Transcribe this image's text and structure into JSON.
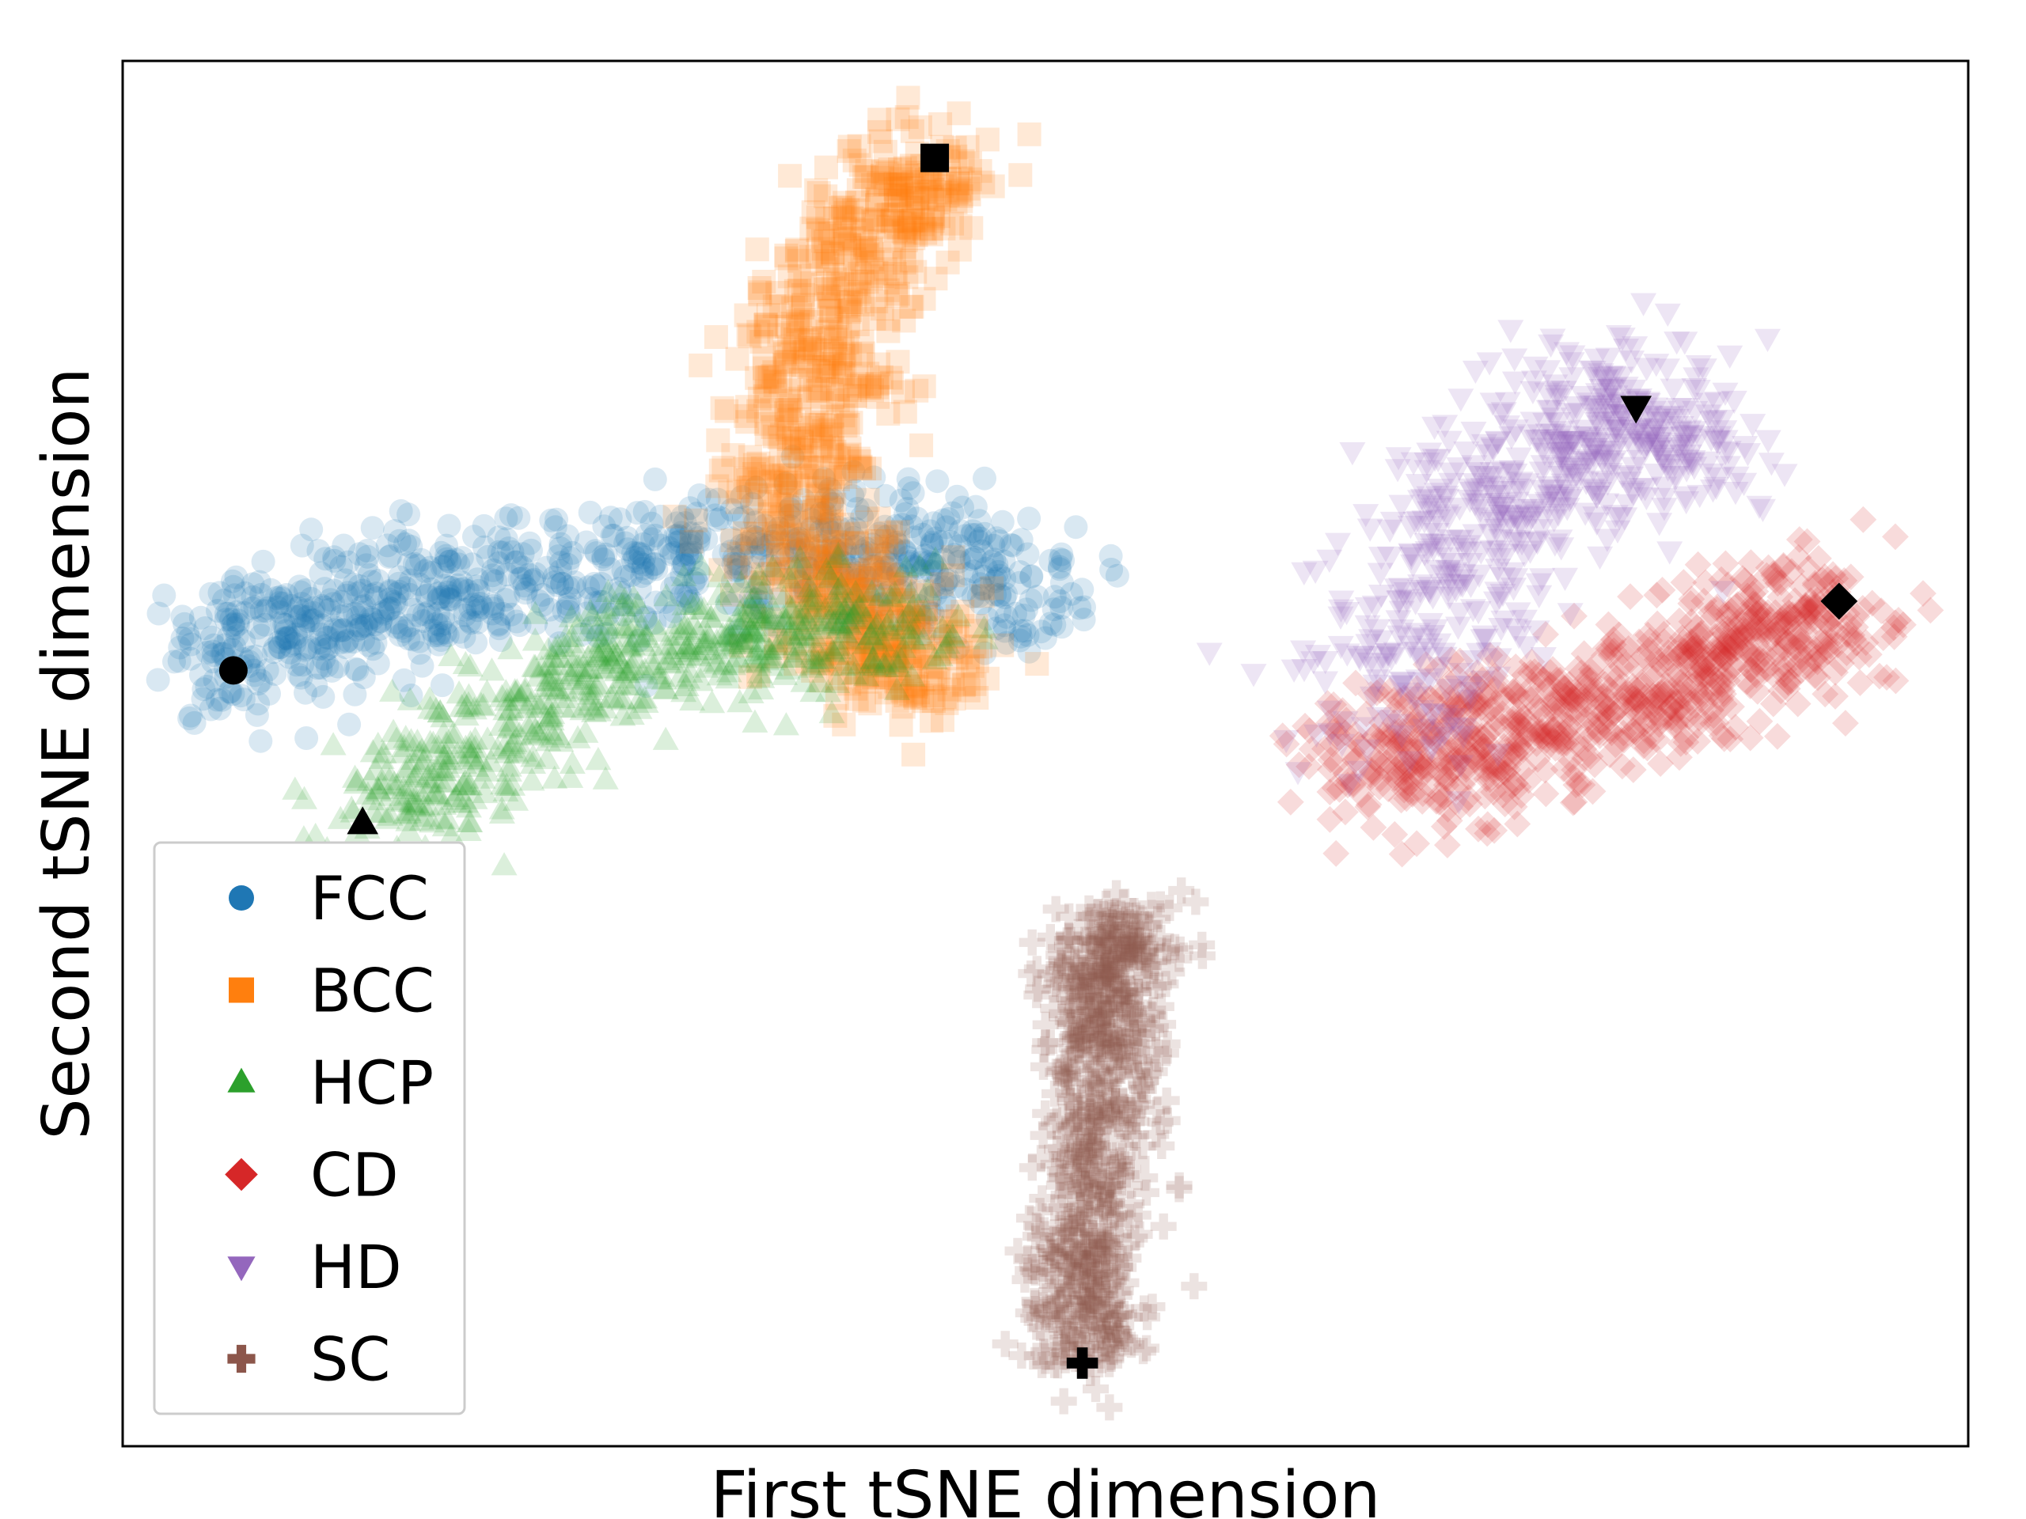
{
  "chart_data": {
    "type": "scatter",
    "title": "",
    "xlabel": "First tSNE dimension",
    "ylabel": "Second tSNE dimension",
    "xlim": [
      0,
      100
    ],
    "ylim": [
      0,
      100
    ],
    "ticks": "none",
    "grid": false,
    "legend_position": "lower-left",
    "series": [
      {
        "name": "FCC",
        "color": "#1f77b4",
        "marker": "circle",
        "reference_point": [
          6,
          56
        ],
        "cluster": {
          "spine": [
            [
              6,
              56
            ],
            [
              9,
              59
            ],
            [
              14,
              61
            ],
            [
              20,
              62
            ],
            [
              27,
              63
            ],
            [
              34,
              65
            ],
            [
              41,
              65
            ],
            [
              46,
              63
            ],
            [
              50,
              60
            ]
          ],
          "spread": 2.5,
          "count": 900
        }
      },
      {
        "name": "BCC",
        "color": "#ff7f0e",
        "marker": "square",
        "reference_point": [
          44,
          93
        ],
        "cluster": {
          "spine": [
            [
              44,
              93
            ],
            [
              41,
              88
            ],
            [
              38,
              82
            ],
            [
              37,
              75
            ],
            [
              37,
              68
            ],
            [
              38,
              62
            ],
            [
              41,
              58
            ],
            [
              44,
              56
            ]
          ],
          "spread": 2.4,
          "count": 900
        }
      },
      {
        "name": "HCP",
        "color": "#2ca02c",
        "marker": "triangle-up",
        "reference_point": [
          13,
          45
        ],
        "cluster": {
          "spine": [
            [
              13,
              45
            ],
            [
              18,
              49
            ],
            [
              24,
              55
            ],
            [
              30,
              58
            ],
            [
              36,
              59
            ],
            [
              43,
              59
            ]
          ],
          "spread": 2.2,
          "count": 650
        }
      },
      {
        "name": "CD",
        "color": "#d62728",
        "marker": "diamond",
        "reference_point": [
          93,
          61
        ],
        "cluster": {
          "spine": [
            [
              67,
              51
            ],
            [
              72,
              50
            ],
            [
              78,
              52
            ],
            [
              84,
              55
            ],
            [
              89,
              59
            ],
            [
              93,
              61
            ]
          ],
          "spread": 2.6,
          "count": 850
        }
      },
      {
        "name": "HD",
        "color": "#9467bd",
        "marker": "triangle-down",
        "reference_point": [
          82,
          75
        ],
        "cluster": {
          "spine": [
            [
              68,
              53
            ],
            [
              71,
              61
            ],
            [
              74,
              68
            ],
            [
              78,
              73
            ],
            [
              82,
              75
            ],
            [
              85,
              70
            ]
          ],
          "spread": 3.0,
          "count": 650
        }
      },
      {
        "name": "SC",
        "color": "#8c564b",
        "marker": "plus",
        "reference_point": [
          52,
          6
        ],
        "cluster": {
          "spine": [
            [
              52,
              6
            ],
            [
              52,
              15
            ],
            [
              53,
              25
            ],
            [
              53,
              33
            ],
            [
              54,
              38
            ]
          ],
          "spread": 1.6,
          "count": 800
        }
      }
    ]
  }
}
